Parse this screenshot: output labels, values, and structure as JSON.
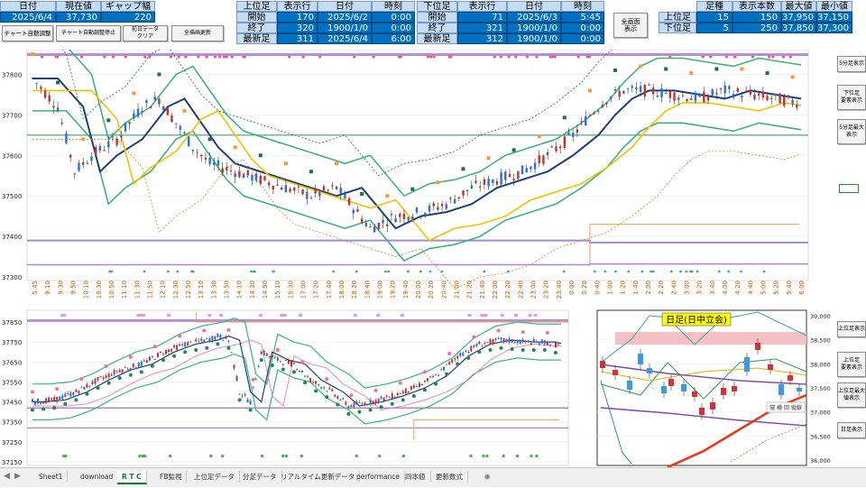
{
  "header": {
    "date_label": "日付",
    "price_label": "現在値",
    "gap_label": "ギャップ幅",
    "date_value": "2025/6/4",
    "price_value": "37,730",
    "gap_value": "220",
    "upper": {
      "label": "上位足",
      "rows_label": "表示行",
      "date_label": "日付",
      "time_label": "時刻",
      "rows": [
        {
          "name": "開始",
          "rows": "170",
          "date": "2025/6/2",
          "time": "0:00"
        },
        {
          "name": "終了",
          "rows": "320",
          "date": "1900/1/0",
          "time": "0:00"
        },
        {
          "name": "最新足",
          "rows": "311",
          "date": "2025/6/4",
          "time": "6:00"
        }
      ]
    },
    "lower": {
      "label": "下位足",
      "rows_label": "表示行",
      "date_label": "日付",
      "time_label": "時刻",
      "rows": [
        {
          "name": "開始",
          "rows": "71",
          "date": "2025/6/3",
          "time": "5:45"
        },
        {
          "name": "終了",
          "rows": "321",
          "date": "1900/1/0",
          "time": "0:00"
        },
        {
          "name": "最新足",
          "rows": "312",
          "date": "1900/1/0",
          "time": "0:00"
        }
      ]
    },
    "fullscreen_button": "全画面\n表示",
    "right_table": {
      "headers": [
        "足種",
        "表示本数",
        "最大値",
        "最小値"
      ],
      "rows": [
        {
          "name": "上位足",
          "kind": "15",
          "count": "150",
          "max": "37,950",
          "min": "37,150"
        },
        {
          "name": "下位足",
          "kind": "5",
          "count": "250",
          "max": "37,850",
          "min": "37,300"
        }
      ]
    }
  },
  "toolbar": {
    "auto_adjust": "チャート自動調整",
    "auto_adjust_stop": "チャート自動調整停止",
    "clear_day": "前日データ\nクリア",
    "redraw": "全描画更新"
  },
  "side_buttons": {
    "b1": "5分足表示",
    "b2": "下位足\n要素表示",
    "b3": "5分足最大\n表示",
    "b4": "上位足表示",
    "b5": "上位足\n要素表示",
    "b6": "上位足最大\n値表示",
    "b7": "日足表示"
  },
  "daily_chart": {
    "title": "日足(日中立会)",
    "y_ticks": [
      "39,000",
      "38,500",
      "38,000",
      "37,500",
      "37,000",
      "36,500",
      "36,000"
    ],
    "tooltip": "寝 横 回 縦線"
  },
  "chart_data": [
    {
      "type": "candlestick",
      "name": "5分足",
      "y_ticks": [
        37800,
        37700,
        37600,
        37500,
        37400,
        37300
      ],
      "ylim": [
        37300,
        37850
      ],
      "x_ticks": [
        "5:45",
        "9:10",
        "9:30",
        "9:50",
        "10:10",
        "10:30",
        "10:50",
        "11:10",
        "11:30",
        "11:50",
        "12:10",
        "12:30",
        "12:50",
        "13:10",
        "13:30",
        "13:50",
        "14:10",
        "14:30",
        "14:50",
        "15:10",
        "15:30",
        "17:00",
        "17:20",
        "17:40",
        "18:00",
        "18:20",
        "18:40",
        "19:00",
        "19:20",
        "19:40",
        "20:00",
        "20:20",
        "20:40",
        "21:00",
        "21:20",
        "21:40",
        "22:00",
        "22:20",
        "22:40",
        "23:00",
        "23:20",
        "23:40",
        "0:00",
        "0:20",
        "0:40",
        "1:00",
        "1:20",
        "1:40",
        "2:00",
        "2:20",
        "2:40",
        "3:00",
        "3:20",
        "3:40",
        "4:00",
        "4:20",
        "4:40",
        "5:00",
        "5:20",
        "5:40",
        "6:00"
      ],
      "series_points": [
        [
          0,
          37790
        ],
        [
          3,
          37720
        ],
        [
          5,
          37560
        ],
        [
          7,
          37600
        ],
        [
          10,
          37640
        ],
        [
          13,
          37720
        ],
        [
          15,
          37740
        ],
        [
          17,
          37680
        ],
        [
          19,
          37620
        ],
        [
          21,
          37580
        ],
        [
          24,
          37560
        ],
        [
          27,
          37540
        ],
        [
          30,
          37520
        ],
        [
          33,
          37500
        ],
        [
          36,
          37520
        ],
        [
          38,
          37470
        ],
        [
          40,
          37420
        ],
        [
          43,
          37450
        ],
        [
          46,
          37460
        ],
        [
          49,
          37480
        ],
        [
          52,
          37520
        ],
        [
          55,
          37540
        ],
        [
          58,
          37560
        ],
        [
          61,
          37600
        ],
        [
          64,
          37650
        ],
        [
          66,
          37700
        ],
        [
          68,
          37740
        ],
        [
          70,
          37760
        ],
        [
          73,
          37760
        ],
        [
          76,
          37750
        ],
        [
          79,
          37740
        ],
        [
          82,
          37760
        ],
        [
          85,
          37750
        ],
        [
          88,
          37740
        ],
        [
          91,
          37730
        ]
      ]
    },
    {
      "type": "candlestick",
      "name": "上位足",
      "y_ticks": [
        37850,
        37750,
        37650,
        37550,
        37450,
        37350,
        37250,
        37150
      ],
      "ylim": [
        37150,
        37900
      ],
      "series_points": [
        [
          0,
          37450
        ],
        [
          4,
          37460
        ],
        [
          8,
          37500
        ],
        [
          12,
          37560
        ],
        [
          16,
          37610
        ],
        [
          20,
          37640
        ],
        [
          24,
          37700
        ],
        [
          28,
          37740
        ],
        [
          32,
          37760
        ],
        [
          34,
          37780
        ],
        [
          36,
          37760
        ],
        [
          38,
          37500
        ],
        [
          40,
          37450
        ],
        [
          42,
          37700
        ],
        [
          45,
          37660
        ],
        [
          48,
          37640
        ],
        [
          51,
          37560
        ],
        [
          55,
          37500
        ],
        [
          58,
          37430
        ],
        [
          62,
          37450
        ],
        [
          66,
          37480
        ],
        [
          70,
          37520
        ],
        [
          74,
          37580
        ],
        [
          78,
          37680
        ],
        [
          82,
          37740
        ],
        [
          86,
          37760
        ],
        [
          90,
          37750
        ],
        [
          94,
          37750
        ],
        [
          97,
          37730
        ]
      ]
    }
  ],
  "sheet_tabs": [
    "Sheet1",
    "download",
    "R T C",
    "FB監視",
    "上位足データ",
    "分足データ",
    "リアルタイム更新データ",
    "performance",
    "四本値",
    "更新数式"
  ],
  "active_tab": "R T C"
}
